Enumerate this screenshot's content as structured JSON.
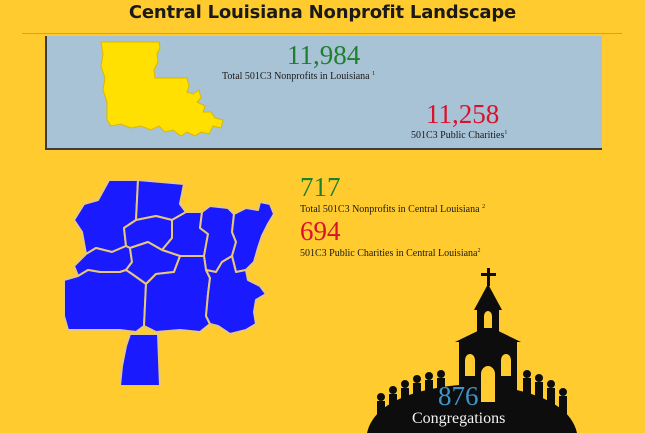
{
  "title": "Central Louisiana Nonprofit Landscape",
  "louisiana": {
    "total_nonprofits": "11,984",
    "total_nonprofits_label": "Total 501C3 Nonprofits in Louisiana",
    "total_nonprofits_note": "1",
    "public_charities": "11,258",
    "public_charities_label": "501C3 Public Charities",
    "public_charities_note": "1"
  },
  "central_louisiana": {
    "total_nonprofits": "717",
    "total_nonprofits_label": "Total 501C3 Nonprofits in Central Louisiana",
    "total_nonprofits_note": "2",
    "public_charities": "694",
    "public_charities_label": "501C3 Public Charities in Central Louisiana",
    "public_charities_note": "2"
  },
  "congregations": {
    "count": "876",
    "label": "Congregations"
  },
  "colors": {
    "background": "#ffcb2f",
    "panel": "#a8c3d6",
    "state_map": "#ffe000",
    "parish_map": "#1a1aff",
    "green_number": "#1e7f2f",
    "red_number": "#d9122c",
    "congregation_number": "#3e95c9"
  },
  "icons": {
    "state_map": "louisiana-state-map-icon",
    "parish_map": "central-louisiana-parishes-map-icon",
    "church": "church-silhouette-icon"
  }
}
